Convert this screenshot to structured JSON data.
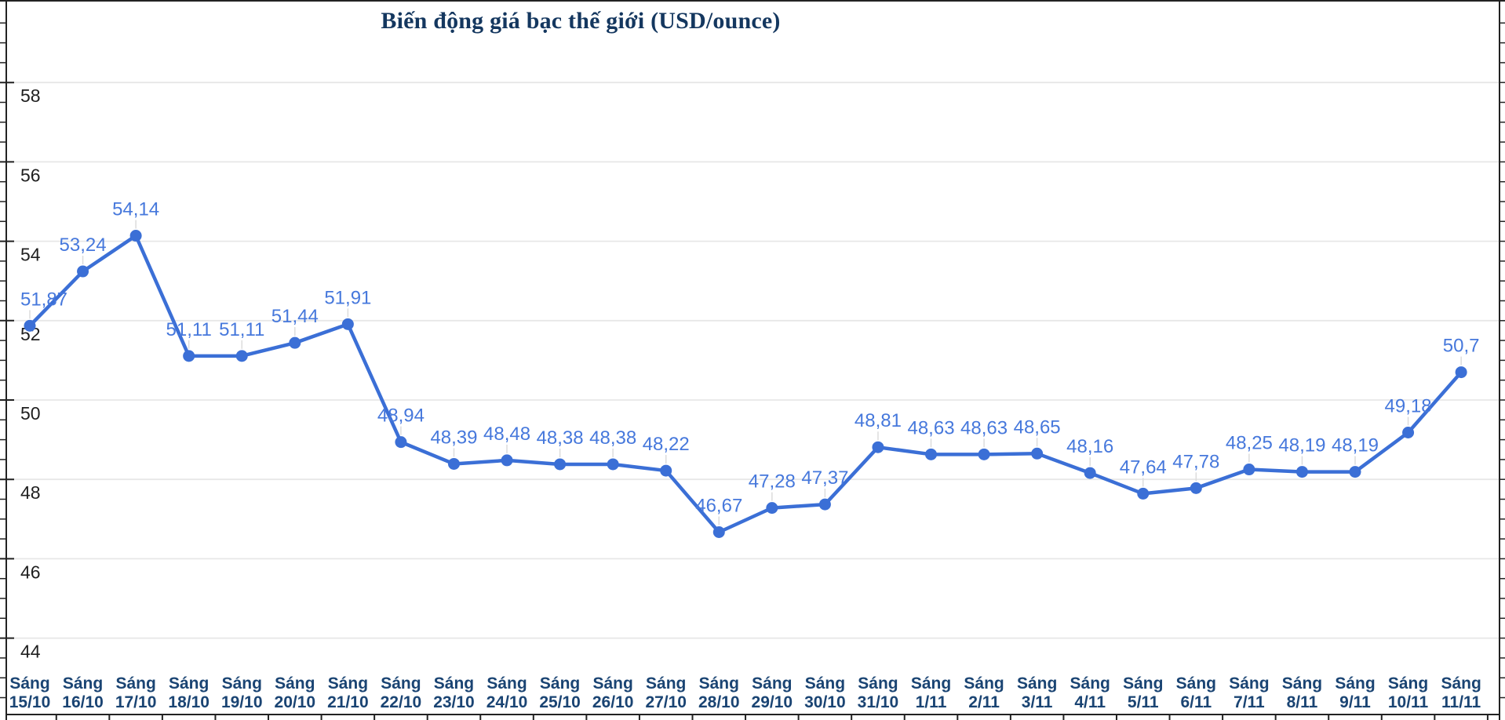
{
  "chart": {
    "title": "Biến động giá bạc thế giới (USD/ounce)"
  },
  "chart_data": {
    "type": "line",
    "title": "Biến động giá bạc thế giới (USD/ounce)",
    "x_label_prefix": "Sáng",
    "categories": [
      "15/10",
      "16/10",
      "17/10",
      "18/10",
      "19/10",
      "20/10",
      "21/10",
      "22/10",
      "23/10",
      "24/10",
      "25/10",
      "26/10",
      "27/10",
      "28/10",
      "29/10",
      "30/10",
      "31/10",
      "1/11",
      "2/11",
      "3/11",
      "4/11",
      "5/11",
      "6/11",
      "7/11",
      "8/11",
      "9/11",
      "10/11",
      "11/11"
    ],
    "values": [
      51.87,
      53.24,
      54.14,
      51.11,
      51.11,
      51.44,
      51.91,
      48.94,
      48.39,
      48.48,
      48.38,
      48.38,
      48.22,
      46.67,
      47.28,
      47.37,
      48.81,
      48.63,
      48.63,
      48.65,
      48.16,
      47.64,
      47.78,
      48.25,
      48.19,
      48.19,
      49.18,
      50.7
    ],
    "value_labels": [
      "51,87",
      "53,24",
      "54,14",
      "51,11",
      "51,11",
      "51,44",
      "51,91",
      "48,94",
      "48,39",
      "48,48",
      "48,38",
      "48,38",
      "48,22",
      "46,67",
      "47,28",
      "47,37",
      "48,81",
      "48,63",
      "48,63",
      "48,65",
      "48,16",
      "47,64",
      "47,78",
      "48,25",
      "48,19",
      "48,19",
      "49,18",
      "50,7"
    ],
    "yticks": [
      44,
      46,
      48,
      50,
      52,
      54,
      56,
      58
    ],
    "ylim": [
      42,
      60
    ],
    "grid": true,
    "legend": "none",
    "colors": {
      "line": "#3b6fd6",
      "marker": "#3b6fd6",
      "value_label": "#4678dc",
      "x_label": "#1a4473",
      "y_label": "#1f1f1f",
      "gridline": "#e7e7e7",
      "leader": "#dcdcdc",
      "axis": "#222222",
      "title": "#14375f"
    }
  }
}
